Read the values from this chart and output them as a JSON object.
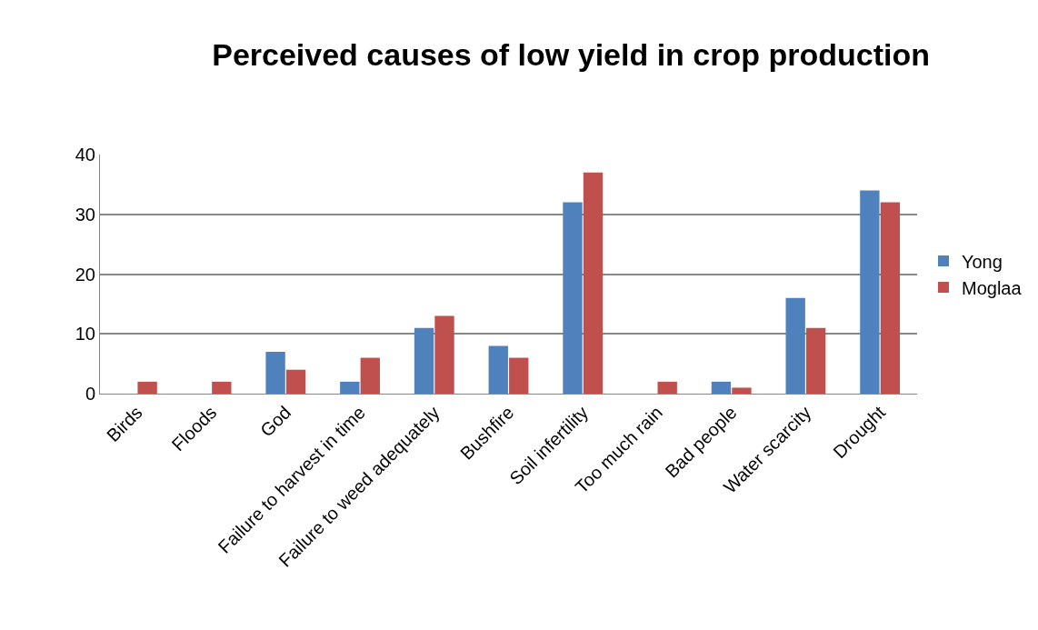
{
  "chart_data": {
    "type": "bar",
    "title": "Perceived causes of low yield in crop production",
    "categories": [
      "Birds",
      "Floods",
      "God",
      "Failure to harvest in time",
      "Failure to weed adequately",
      "Bushfire",
      "Soil infertility",
      "Too much rain",
      "Bad people",
      "Water scarcity",
      "Drought"
    ],
    "series": [
      {
        "name": "Yong",
        "color": "#4f81bd",
        "values": [
          0,
          0,
          7,
          2,
          11,
          8,
          32,
          0,
          2,
          16,
          34
        ]
      },
      {
        "name": "Moglaa",
        "color": "#c0504d",
        "values": [
          2,
          2,
          4,
          6,
          13,
          6,
          37,
          2,
          1,
          11,
          32
        ]
      }
    ],
    "ylim": [
      0,
      40
    ],
    "yticks": [
      0,
      10,
      20,
      30,
      40
    ],
    "grid": "y",
    "legend": "right"
  }
}
